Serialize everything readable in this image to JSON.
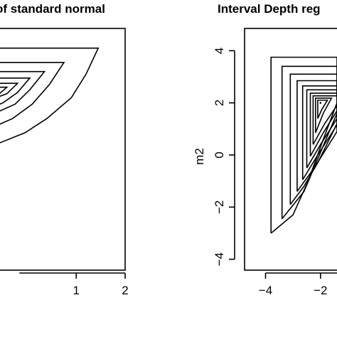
{
  "chart_data": [
    {
      "type": "contour",
      "title": "of standard normal",
      "xlabel": "",
      "ylabel": "",
      "xlim": [
        -0.85,
        2.0
      ],
      "ylim": [
        -4.2,
        4.2
      ],
      "x_ticks": [
        1,
        2
      ],
      "x_tick_labels": [
        "1",
        "2"
      ],
      "y_ticks": [],
      "contours": [
        {
          "level": 1,
          "points": [
            [
              -0.85,
              4.1
            ],
            [
              1.45,
              4.1
            ],
            [
              1.2,
              3.1
            ],
            [
              0.9,
              2.2
            ],
            [
              0.4,
              1.4
            ],
            [
              -0.05,
              0.85
            ],
            [
              -0.85,
              0.25
            ]
          ]
        },
        {
          "level": 2,
          "points": [
            [
              -0.85,
              3.55
            ],
            [
              0.75,
              3.55
            ],
            [
              0.45,
              2.7
            ],
            [
              0.1,
              1.95
            ],
            [
              -0.3,
              1.4
            ],
            [
              -0.85,
              0.95
            ]
          ]
        },
        {
          "level": 3,
          "points": [
            [
              -0.85,
              3.2
            ],
            [
              0.35,
              3.2
            ],
            [
              0.05,
              2.5
            ],
            [
              -0.25,
              1.95
            ],
            [
              -0.85,
              1.45
            ]
          ]
        },
        {
          "level": 4,
          "points": [
            [
              -0.85,
              2.95
            ],
            [
              0.05,
              2.95
            ],
            [
              -0.2,
              2.4
            ],
            [
              -0.5,
              2.0
            ],
            [
              -0.85,
              1.75
            ]
          ]
        },
        {
          "level": 5,
          "points": [
            [
              -0.85,
              2.75
            ],
            [
              -0.2,
              2.75
            ],
            [
              -0.42,
              2.35
            ],
            [
              -0.85,
              2.05
            ]
          ]
        },
        {
          "level": 6,
          "points": [
            [
              -0.85,
              2.6
            ],
            [
              -0.42,
              2.6
            ],
            [
              -0.6,
              2.3
            ],
            [
              -0.85,
              2.18
            ]
          ]
        }
      ]
    },
    {
      "type": "contour",
      "title": "Interval Depth reg",
      "xlabel": "",
      "ylabel": "m2",
      "xlim": [
        -4.4,
        -1.4
      ],
      "ylim": [
        -4.2,
        4.2
      ],
      "x_ticks": [
        -4,
        -2
      ],
      "x_tick_labels": [
        "−4",
        "−2"
      ],
      "y_ticks": [
        -4,
        -2,
        0,
        2,
        4
      ],
      "y_tick_labels": [
        "−4",
        "−2",
        "0",
        "2",
        "4"
      ],
      "center": [
        -2.0,
        2.0
      ],
      "contours": [
        {
          "level": 1,
          "points": [
            [
              -3.8,
              -3.0
            ],
            [
              -3.8,
              3.75
            ],
            [
              -1.4,
              3.75
            ]
          ],
          "tail": [
            [
              -1.4,
              2.0
            ],
            [
              -1.9,
              0.6
            ],
            [
              -2.45,
              -1.0
            ],
            [
              -3.0,
              -2.3
            ],
            [
              -3.8,
              -3.0
            ]
          ]
        },
        {
          "level": 2,
          "points": [
            [
              -3.4,
              -2.45
            ],
            [
              -3.4,
              3.4
            ],
            [
              -1.4,
              3.4
            ]
          ],
          "tail": [
            [
              -1.4,
              1.6
            ],
            [
              -2.0,
              0.1
            ],
            [
              -2.6,
              -1.4
            ],
            [
              -3.4,
              -2.45
            ]
          ]
        },
        {
          "level": 3,
          "points": [
            [
              -3.1,
              -1.9
            ],
            [
              -3.1,
              3.1
            ],
            [
              -1.4,
              3.1
            ]
          ],
          "tail": [
            [
              -1.4,
              1.2
            ],
            [
              -2.1,
              -0.3
            ],
            [
              -2.6,
              -1.2
            ],
            [
              -3.1,
              -1.9
            ]
          ]
        },
        {
          "level": 4,
          "points": [
            [
              -2.85,
              -1.4
            ],
            [
              -2.85,
              2.85
            ],
            [
              -1.4,
              2.85
            ]
          ],
          "tail": [
            [
              -1.4,
              0.9
            ],
            [
              -2.2,
              -0.45
            ],
            [
              -2.85,
              -1.4
            ]
          ]
        },
        {
          "level": 5,
          "points": [
            [
              -2.65,
              -0.95
            ],
            [
              -2.65,
              2.65
            ],
            [
              -1.4,
              2.65
            ]
          ],
          "tail": [
            [
              -1.4,
              1.15
            ],
            [
              -2.1,
              0.0
            ],
            [
              -2.65,
              -0.95
            ]
          ]
        },
        {
          "level": 6,
          "points": [
            [
              -2.5,
              -0.5
            ],
            [
              -2.5,
              2.5
            ],
            [
              -1.4,
              2.5
            ]
          ],
          "tail": [
            [
              -1.4,
              1.4
            ],
            [
              -2.0,
              0.4
            ],
            [
              -2.5,
              -0.5
            ]
          ]
        },
        {
          "level": 7,
          "points": [
            [
              -2.37,
              -0.05
            ],
            [
              -2.37,
              2.37
            ],
            [
              -1.4,
              2.37
            ]
          ],
          "tail": [
            [
              -1.4,
              1.7
            ],
            [
              -1.9,
              0.85
            ],
            [
              -2.37,
              -0.05
            ]
          ]
        },
        {
          "level": 8,
          "points": [
            [
              -2.27,
              0.4
            ],
            [
              -2.27,
              2.27
            ],
            [
              -1.4,
              2.27
            ]
          ],
          "tail": [
            [
              -1.4,
              1.9
            ],
            [
              -1.85,
              1.2
            ],
            [
              -2.27,
              0.4
            ]
          ]
        },
        {
          "level": 9,
          "points": [
            [
              -2.18,
              0.85
            ],
            [
              -2.18,
              2.18
            ],
            [
              -1.6,
              2.18
            ],
            [
              -1.9,
              1.6
            ],
            [
              -2.18,
              0.85
            ]
          ]
        },
        {
          "level": 10,
          "points": [
            [
              -2.1,
              1.4
            ],
            [
              -2.1,
              2.1
            ],
            [
              -1.75,
              2.1
            ],
            [
              -1.95,
              1.75
            ],
            [
              -2.1,
              1.4
            ]
          ]
        }
      ]
    }
  ]
}
